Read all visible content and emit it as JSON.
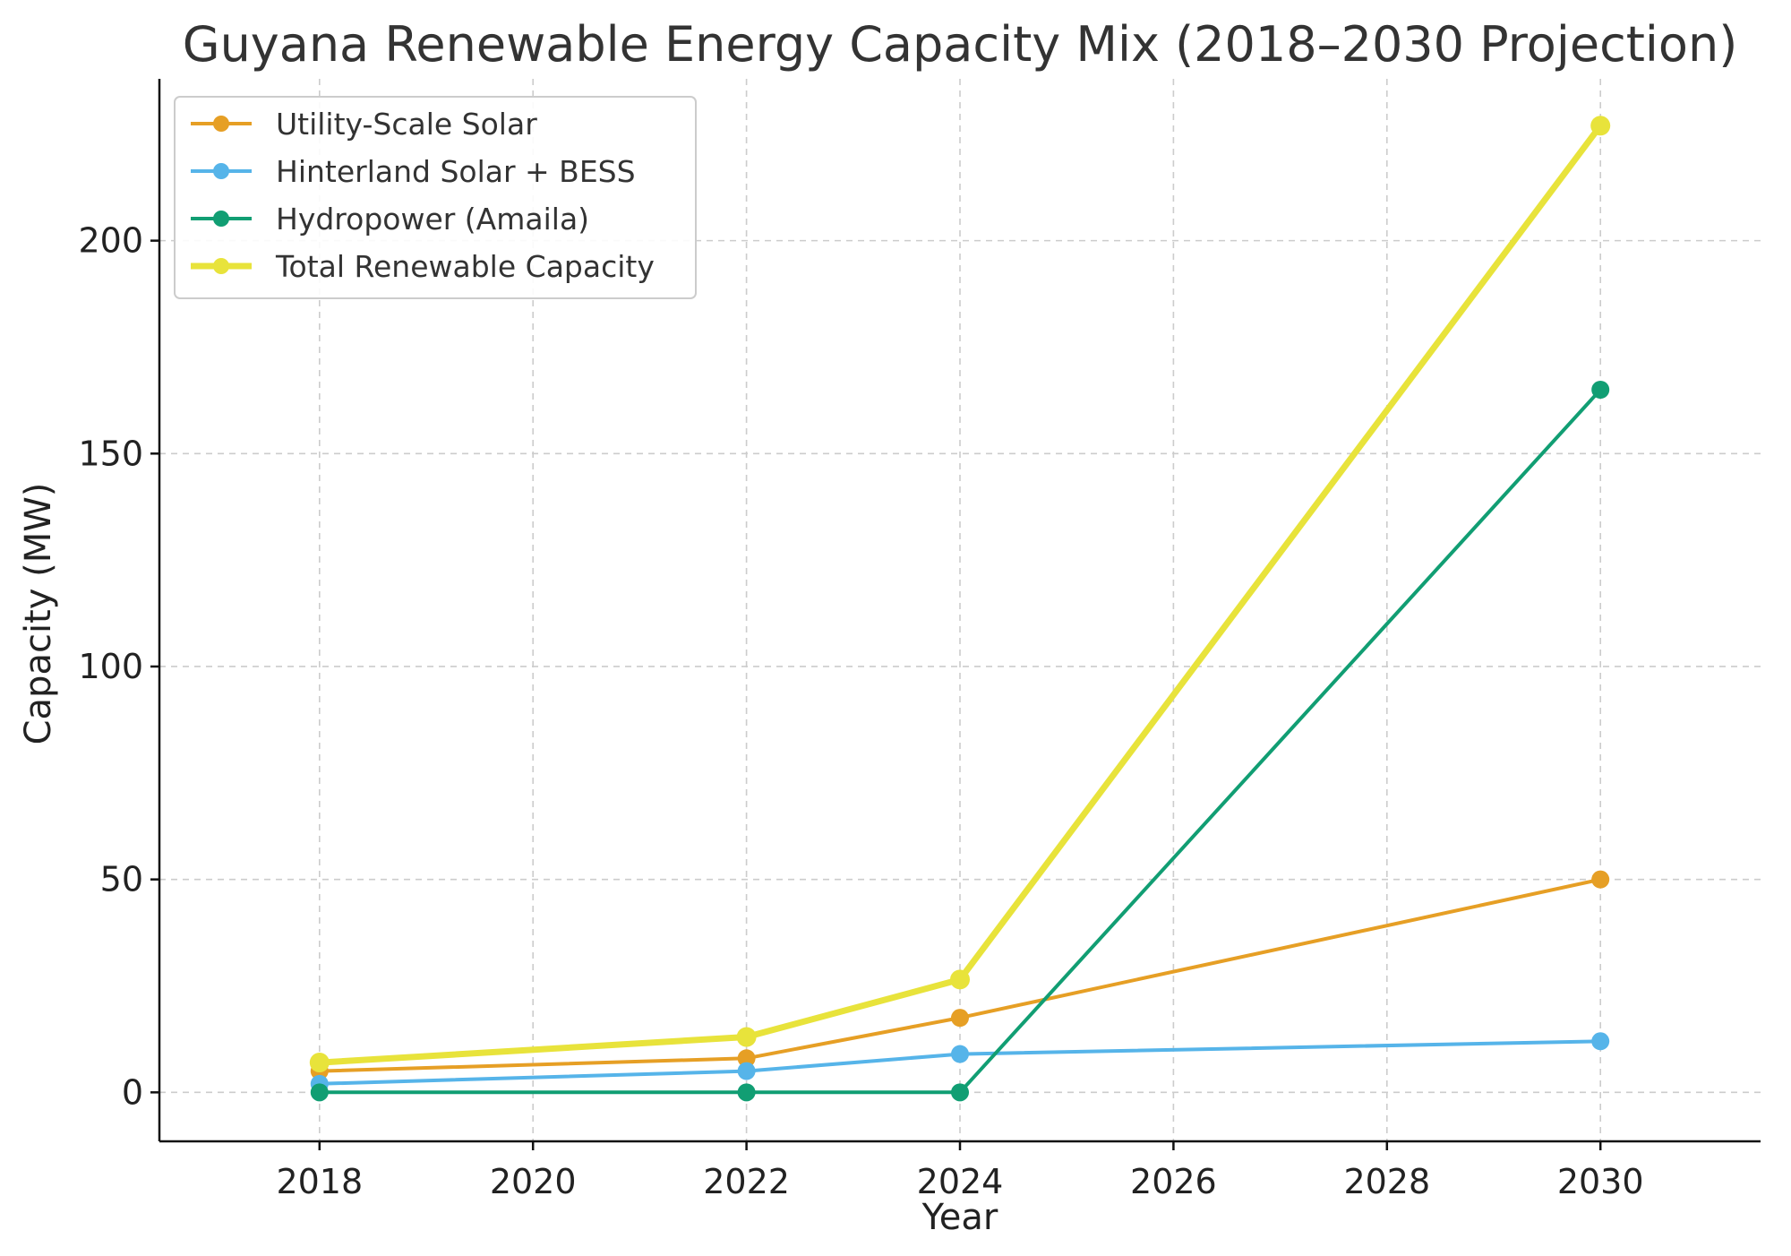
{
  "chart_data": {
    "type": "line",
    "title": "Guyana Renewable Energy Capacity Mix (2018–2030 Projection)",
    "xlabel": "Year",
    "ylabel": "Capacity (MW)",
    "x": [
      2018,
      2022,
      2024,
      2030
    ],
    "xlim": [
      2016.5,
      2031.5
    ],
    "ylim": [
      -11.5,
      238
    ],
    "xticks": [
      2018,
      2020,
      2022,
      2024,
      2026,
      2028,
      2030
    ],
    "yticks": [
      0,
      50,
      100,
      150,
      200
    ],
    "grid": true,
    "legend_position": "top-left",
    "series": [
      {
        "name": "Utility-Scale Solar",
        "color": "#E69F25",
        "values": [
          5,
          8,
          17.5,
          50
        ]
      },
      {
        "name": "Hinterland Solar + BESS",
        "color": "#56B4E9",
        "values": [
          2,
          5,
          9,
          12
        ]
      },
      {
        "name": "Hydropower (Amaila)",
        "color": "#119E73",
        "values": [
          0,
          0,
          0,
          165
        ]
      },
      {
        "name": "Total Renewable Capacity",
        "color": "#E8E33B",
        "values": [
          7,
          13,
          26.5,
          227
        ]
      }
    ]
  }
}
